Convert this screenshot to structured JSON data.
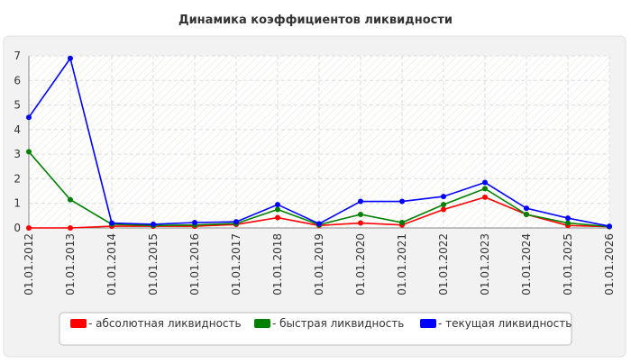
{
  "chart_data": {
    "type": "line",
    "title": "Динамика коэффициентов ликвидности",
    "xlabel": "",
    "ylabel": "",
    "ylim": [
      0,
      7
    ],
    "yticks": [
      "0",
      "1",
      "2",
      "3",
      "4",
      "5",
      "6",
      "7"
    ],
    "grid": true,
    "legend_position": "bottom",
    "categories": [
      "01.01.2012",
      "01.01.2013",
      "01.01.2014",
      "01.01.2015",
      "01.01.2016",
      "01.01.2017",
      "01.01.2018",
      "01.01.2019",
      "01.01.2020",
      "01.01.2021",
      "01.01.2022",
      "01.01.2023",
      "01.01.2024",
      "01.01.2025",
      "01.01.2026"
    ],
    "series": [
      {
        "name": "- абсолютная ликвидность",
        "color": "#ff0000",
        "values": [
          0.0,
          0.0,
          0.07,
          0.07,
          0.07,
          0.14,
          0.42,
          0.1,
          0.2,
          0.12,
          0.75,
          1.25,
          0.55,
          0.1,
          0.05
        ]
      },
      {
        "name": "- быстрая ликвидность",
        "color": "#008000",
        "values": [
          3.1,
          1.15,
          0.15,
          0.1,
          0.12,
          0.18,
          0.75,
          0.13,
          0.55,
          0.22,
          0.95,
          1.6,
          0.55,
          0.2,
          0.05
        ]
      },
      {
        "name": "- текущая ликвидность",
        "color": "#0000ff",
        "values": [
          4.5,
          6.9,
          0.2,
          0.15,
          0.22,
          0.25,
          0.95,
          0.17,
          1.08,
          1.08,
          1.28,
          1.85,
          0.8,
          0.4,
          0.07
        ]
      }
    ]
  }
}
